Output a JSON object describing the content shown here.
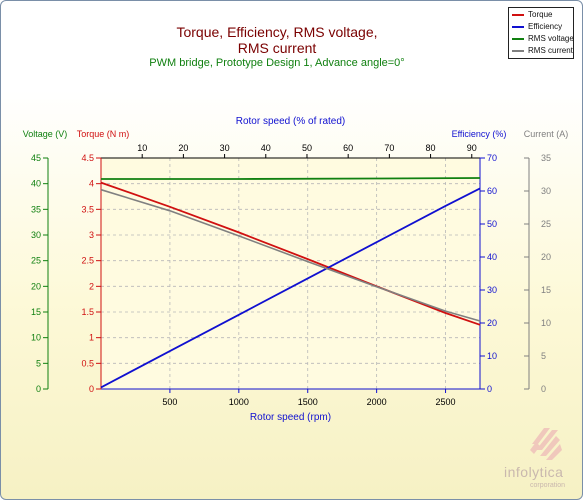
{
  "colors": {
    "torque": "#d01010",
    "efficiency": "#1010d0",
    "voltage": "#108010",
    "current": "#808080",
    "title": "#7a0000",
    "subtitle": "#108010",
    "grid": "#b8b8b8"
  },
  "chart_data": {
    "type": "line",
    "title": "Torque, Efficiency, RMS voltage, RMS current",
    "title_line1": "Torque, Efficiency, RMS voltage,",
    "title_line2": "RMS current",
    "subtitle": "PWM bridge, Prototype Design 1, Advance angle=0°",
    "xlabel": "Rotor speed (rpm)",
    "xlim": [
      0,
      2750
    ],
    "xticks": [
      500,
      1000,
      1500,
      2000,
      2500
    ],
    "x2label": "Rotor speed (% of rated)",
    "x2lim": [
      0,
      92
    ],
    "x2ticks": [
      10,
      20,
      30,
      40,
      50,
      60,
      70,
      80,
      90
    ],
    "axes": {
      "voltage": {
        "label": "Voltage (V)",
        "lim": [
          0,
          45
        ],
        "ticks": [
          0,
          5,
          10,
          15,
          20,
          25,
          30,
          35,
          40,
          45
        ]
      },
      "torque": {
        "label": "Torque (N m)",
        "lim": [
          0,
          4.5
        ],
        "ticks": [
          "0",
          "0.5",
          "1",
          "1.5",
          "2",
          "2.5",
          "3",
          "3.5",
          "4",
          "4.5"
        ]
      },
      "efficiency": {
        "label": "Efficiency (%)",
        "lim": [
          0,
          70
        ],
        "ticks": [
          0,
          10,
          20,
          30,
          40,
          50,
          60,
          70
        ]
      },
      "current": {
        "label": "Current (A)",
        "lim": [
          0,
          35
        ],
        "ticks": [
          0,
          5,
          10,
          15,
          20,
          25,
          30,
          35
        ]
      }
    },
    "grid": true,
    "legend_position": "top-right",
    "series": [
      {
        "name": "Torque",
        "axis": "torque",
        "x": [
          0,
          500,
          1000,
          1500,
          2000,
          2500,
          2750
        ],
        "y": [
          4.02,
          3.55,
          3.05,
          2.53,
          2.0,
          1.48,
          1.25
        ]
      },
      {
        "name": "Efficiency",
        "axis": "efficiency",
        "x": [
          0,
          500,
          1000,
          1500,
          2000,
          2500,
          2750
        ],
        "y": [
          0.5,
          11.5,
          22.5,
          33.5,
          44.5,
          55.5,
          60.8
        ]
      },
      {
        "name": "RMS voltage",
        "axis": "voltage",
        "x": [
          0,
          1000,
          2000,
          2750
        ],
        "y": [
          40.9,
          40.9,
          41.0,
          41.1
        ]
      },
      {
        "name": "RMS current",
        "axis": "current",
        "x": [
          0,
          500,
          1000,
          1500,
          2000,
          2500,
          2750
        ],
        "y": [
          30.2,
          27.0,
          23.2,
          19.3,
          15.5,
          11.8,
          10.3
        ]
      }
    ]
  },
  "logo": {
    "name": "infolytica",
    "sub": "corporation"
  }
}
